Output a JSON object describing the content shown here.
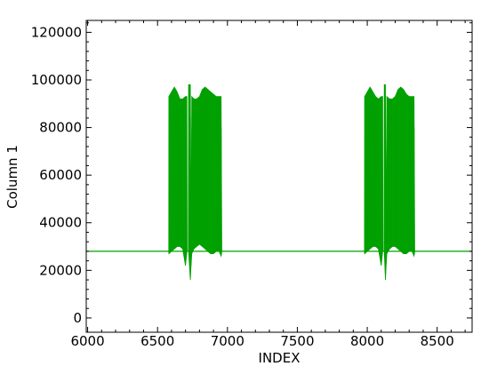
{
  "chart_data": {
    "type": "line",
    "title": "",
    "xlabel": "INDEX",
    "ylabel": "Column 1",
    "xlim": [
      5990,
      8750
    ],
    "ylim": [
      -6000,
      125000
    ],
    "x_ticks": [
      6000,
      6500,
      7000,
      7500,
      8000,
      8500
    ],
    "y_ticks": [
      0,
      20000,
      40000,
      60000,
      80000,
      100000,
      120000
    ],
    "x_tick_labels": [
      "6000",
      "6500",
      "7000",
      "7500",
      "8000",
      "8500"
    ],
    "y_tick_labels": [
      "0",
      "20000",
      "40000",
      "60000",
      "80000",
      "100000",
      "120000"
    ],
    "grid": false,
    "legend": "none",
    "series": [
      {
        "color": "#00a000",
        "baseline": 28000,
        "bursts": [
          {
            "x": [
              5990,
              6580,
              6581,
              6600,
              6620,
              6640,
              6660,
              6680,
              6700,
              6710,
              6712,
              6720,
              6722,
              6735,
              6740,
              6745,
              6760,
              6780,
              6800,
              6820,
              6840,
              6860,
              6880,
              6900,
              6920,
              6940,
              6955,
              6960,
              6970
            ],
            "upper": [
              28000,
              28000,
              93000,
              95000,
              97000,
              95000,
              92000,
              92000,
              93000,
              93000,
              28000,
              28000,
              98000,
              98000,
              28000,
              93000,
              92000,
              92000,
              93000,
              96000,
              97000,
              96000,
              95000,
              94000,
              93000,
              93000,
              93000,
              28000,
              28000
            ],
            "lower": [
              28000,
              28000,
              27000,
              28000,
              29000,
              30000,
              30000,
              29000,
              22000,
              28000,
              28000,
              28000,
              28000,
              16000,
              22000,
              27000,
              29000,
              30000,
              31000,
              30000,
              29000,
              28000,
              27000,
              27000,
              28000,
              28000,
              26000,
              28000,
              28000
            ]
          },
          {
            "x": [
              7960,
              7980,
              7981,
              8000,
              8020,
              8040,
              8060,
              8080,
              8100,
              8110,
              8112,
              8120,
              8122,
              8130,
              8135,
              8140,
              8160,
              8180,
              8200,
              8220,
              8240,
              8260,
              8280,
              8300,
              8320,
              8335,
              8340,
              8350
            ],
            "upper": [
              28000,
              28000,
              93000,
              95000,
              97000,
              95000,
              93000,
              92000,
              93000,
              93000,
              28000,
              28000,
              98000,
              98000,
              28000,
              93000,
              92000,
              92000,
              93000,
              96000,
              97000,
              96000,
              94000,
              93000,
              93000,
              93000,
              28000,
              28000
            ],
            "lower": [
              28000,
              28000,
              27000,
              28000,
              29000,
              30000,
              30000,
              29000,
              22000,
              28000,
              28000,
              28000,
              28000,
              16000,
              22000,
              27000,
              29000,
              30000,
              30000,
              29000,
              28000,
              27000,
              27000,
              28000,
              28000,
              26000,
              28000,
              28000
            ]
          }
        ]
      }
    ]
  }
}
